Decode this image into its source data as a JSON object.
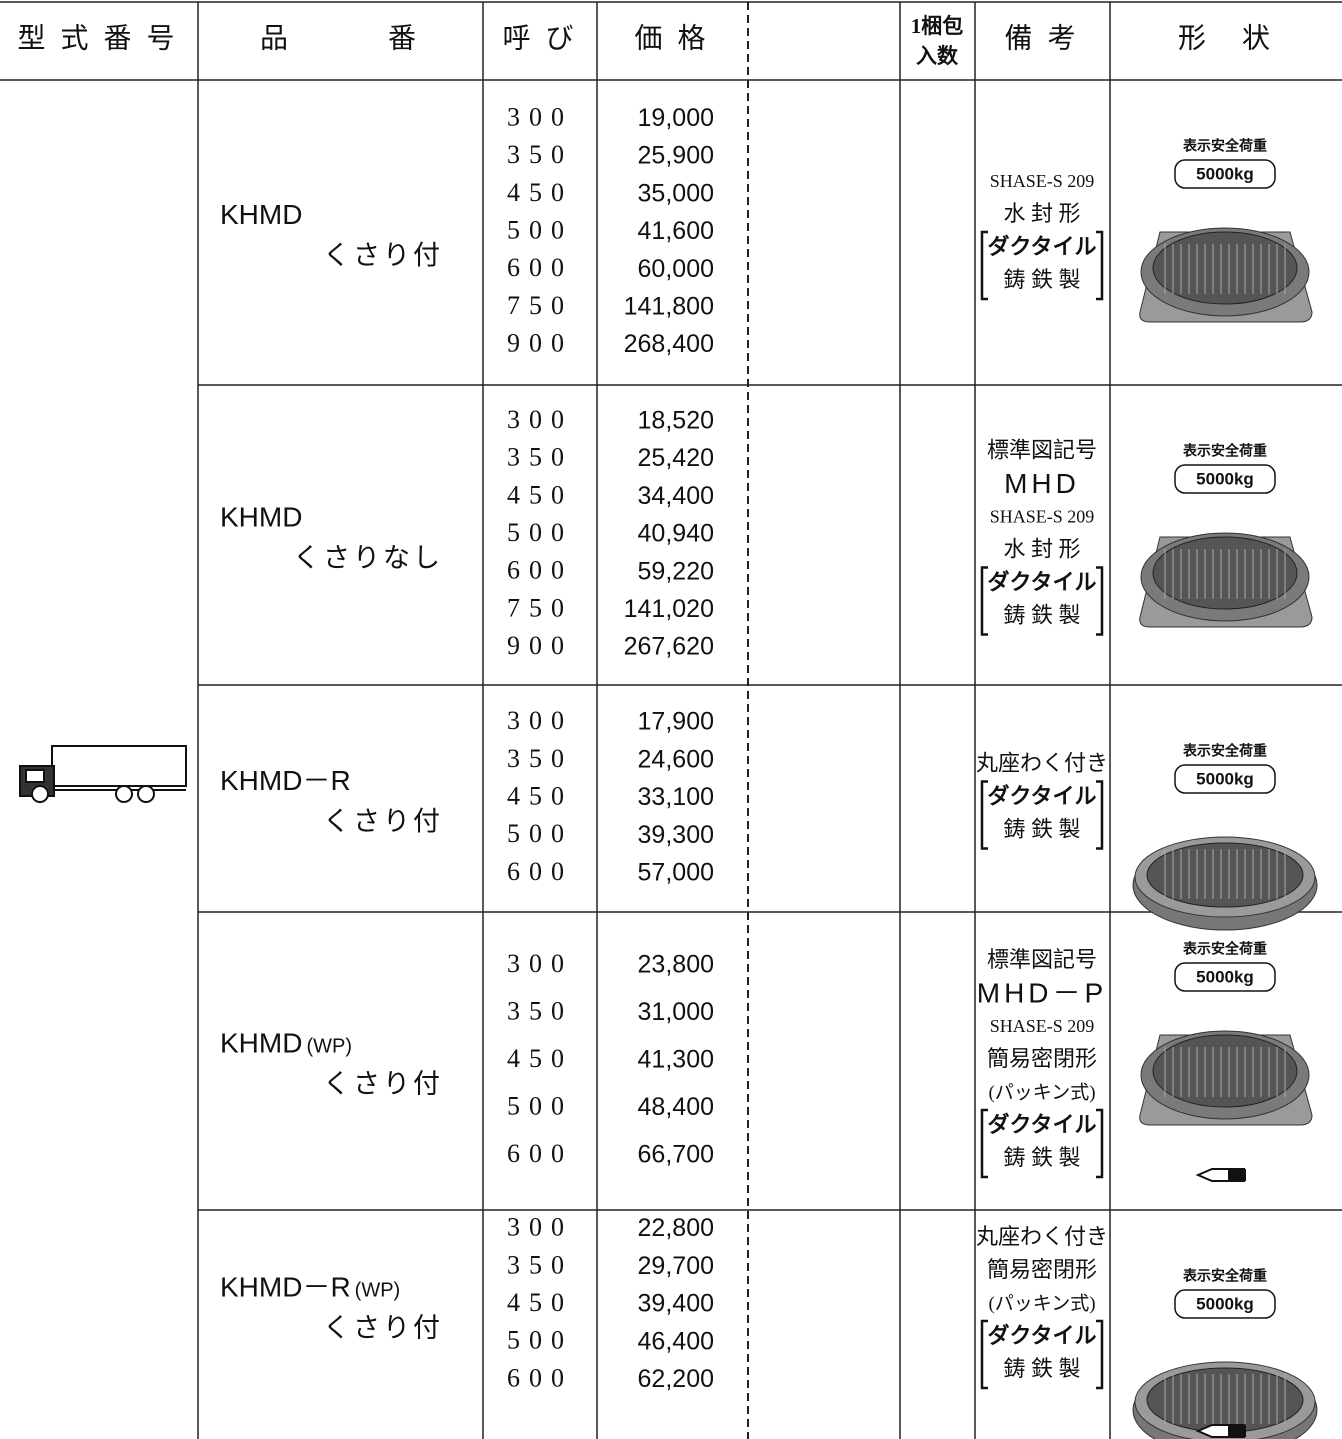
{
  "header": [
    "型 式 番 号",
    "品　　　番",
    "呼 び",
    "価 格",
    "1梱包",
    "入数",
    "備 考",
    "形　状"
  ],
  "rows": [
    {
      "name": "KHMD",
      "sub": "くさり付",
      "sizes": [
        "300",
        "350",
        "450",
        "500",
        "600",
        "750",
        "900"
      ],
      "prices": [
        "19,000",
        "25,900",
        "35,000",
        "41,600",
        "60,000",
        "141,800",
        "268,400"
      ],
      "notes": [
        "SHASE-S 209",
        "水 封 形",
        "ダクタイル",
        "鋳 鉄 製"
      ],
      "load_label": "表示安全荷重",
      "load_value": "5000kg"
    },
    {
      "name": "KHMD",
      "sub": "くさりなし",
      "sizes": [
        "300",
        "350",
        "450",
        "500",
        "600",
        "750",
        "900"
      ],
      "prices": [
        "18,520",
        "25,420",
        "34,400",
        "40,940",
        "59,220",
        "141,020",
        "267,620"
      ],
      "notes": [
        "標準図記号",
        "MHD",
        "SHASE-S 209",
        "水 封 形",
        "ダクタイル",
        "鋳 鉄 製"
      ],
      "load_label": "表示安全荷重",
      "load_value": "5000kg"
    },
    {
      "name": "KHMD－R",
      "sub": "くさり付",
      "sizes": [
        "300",
        "350",
        "450",
        "500",
        "600"
      ],
      "prices": [
        "17,900",
        "24,600",
        "33,100",
        "39,300",
        "57,000"
      ],
      "notes": [
        "丸座わく付き",
        "ダクタイル",
        "鋳 鉄 製"
      ],
      "load_label": "表示安全荷重",
      "load_value": "5000kg"
    },
    {
      "name": "KHMD",
      "suffix": "(WP)",
      "sub": "くさり付",
      "sizes": [
        "300",
        "350",
        "450",
        "500",
        "600"
      ],
      "prices": [
        "23,800",
        "31,000",
        "41,300",
        "48,400",
        "66,700"
      ],
      "notes": [
        "標準図記号",
        "MHD－P",
        "SHASE-S 209",
        "簡易密閉形",
        "(パッキン式)",
        "ダクタイル",
        "鋳 鉄 製"
      ],
      "load_label": "表示安全荷重",
      "load_value": "5000kg"
    },
    {
      "name": "KHMD－R",
      "suffix": "(WP)",
      "sub": "くさり付",
      "sizes": [
        "300",
        "350",
        "450",
        "500",
        "600"
      ],
      "prices": [
        "22,800",
        "29,700",
        "39,400",
        "46,400",
        "62,200"
      ],
      "notes": [
        "丸座わく付き",
        "簡易密閉形",
        "(パッキン式)",
        "ダクタイル",
        "鋳 鉄 製"
      ],
      "load_label": "表示安全荷重",
      "load_value": "5000kg"
    }
  ]
}
